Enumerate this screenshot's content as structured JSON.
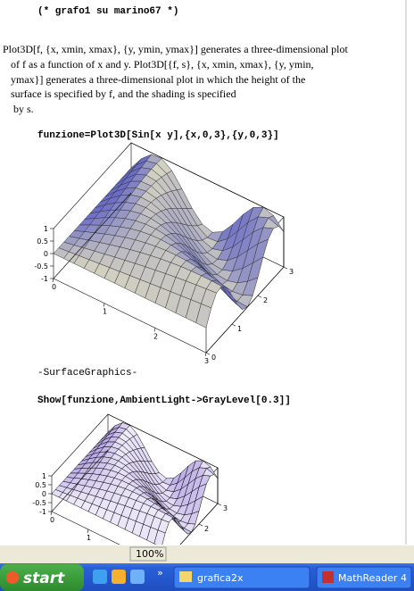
{
  "notebook": {
    "comment": "(* grafo1 su marino67 *)",
    "usage": [
      "Plot3D[f, {x, xmin, xmax}, {y, ymin, ymax}] generates a three-dimensional plot",
      "of f as a function of x and y. Plot3D[{f, s}, {x, xmin, xmax}, {y, ymin,",
      "ymax}] generates a three-dimensional plot in which the height of the",
      "surface is specified by f, and the shading is specified",
      "by s."
    ],
    "input1": "funzione=Plot3D[Sin[x y],{x,0,3},{y,0,3}]",
    "plot1": {
      "z_ticks": [
        "1",
        "0.5",
        "0",
        "-0.5",
        "-1"
      ],
      "x_ticks": [
        "0",
        "1",
        "2",
        "3"
      ],
      "y_ticks": [
        "0",
        "1",
        "2",
        "3"
      ]
    },
    "output1": "-SurfaceGraphics-",
    "input2": "Show[funzione,AmbientLight->GrayLevel[0.3]]",
    "plot2": {
      "z_ticks": [
        "1",
        "0.5",
        "0",
        "-0.5",
        "-1"
      ],
      "x_ticks": [
        "0",
        "1"
      ],
      "y_ticks": [
        "1",
        "2",
        "3"
      ]
    }
  },
  "status": {
    "zoom": "100%"
  },
  "taskbar": {
    "start": "start",
    "overflow": "»",
    "buttons": [
      "grafica2x",
      "MathReader 4"
    ]
  }
}
